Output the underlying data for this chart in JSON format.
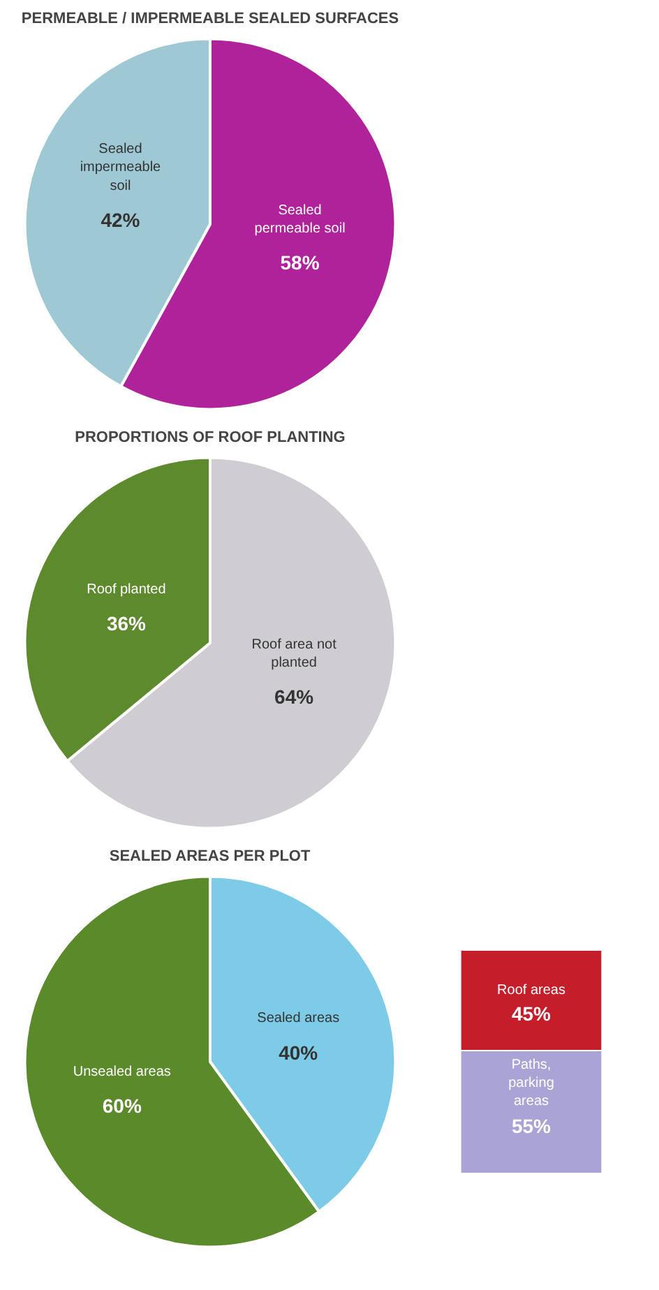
{
  "chart_data": [
    {
      "type": "pie",
      "title": "PERMEABLE / IMPERMEABLE SEALED SURFACES",
      "categories": [
        "Sealed permeable soil",
        "Sealed impermeable soil"
      ],
      "values": [
        58,
        42
      ],
      "colors": [
        "#b0229a",
        "#9ec8d4"
      ],
      "value_labels": [
        "58%",
        "42%"
      ]
    },
    {
      "type": "pie",
      "title": "PROPORTIONS OF ROOF PLANTING",
      "categories": [
        "Roof area not planted",
        "Roof planted"
      ],
      "values": [
        64,
        36
      ],
      "colors": [
        "#cfcdd2",
        "#5e8a2e"
      ],
      "value_labels": [
        "64%",
        "36%"
      ]
    },
    {
      "type": "pie",
      "title": "SEALED AREAS PER PLOT",
      "categories": [
        "Sealed areas",
        "Unsealed areas"
      ],
      "values": [
        40,
        60
      ],
      "colors": [
        "#7dcbe6",
        "#5b8a2a"
      ],
      "value_labels": [
        "40%",
        "60%"
      ]
    },
    {
      "type": "bar",
      "stacked": true,
      "tick_labels": false,
      "categories": [
        null
      ],
      "series": [
        {
          "name": "Paths, parking areas",
          "color": "#a9a3d6",
          "values": [
            55
          ],
          "value_labels": [
            "55%"
          ]
        },
        {
          "name": "Roof areas",
          "color": "#c41e2a",
          "values": [
            45
          ],
          "value_labels": [
            "45%"
          ]
        }
      ]
    }
  ]
}
